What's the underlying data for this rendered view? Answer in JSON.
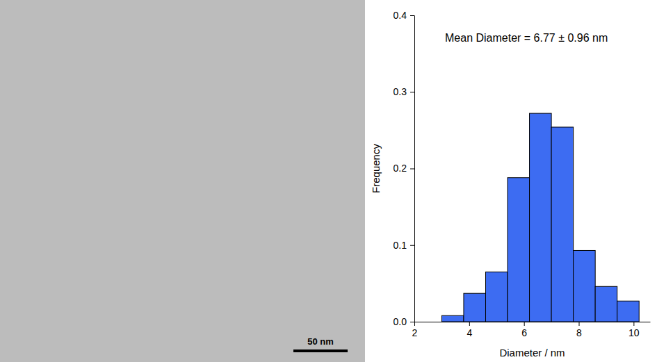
{
  "micrograph": {
    "scale_bar_label": "50 nm"
  },
  "chart_data": {
    "type": "histogram",
    "annotation": "Mean Diameter = 6.77 ± 0.96 nm",
    "x_label": "Diameter / nm",
    "y_label": "Frequency",
    "bins": [
      3.0,
      3.8,
      4.6,
      5.4,
      6.2,
      7.0,
      7.8,
      8.6,
      9.4,
      10.2
    ],
    "values": [
      0.008,
      0.037,
      0.065,
      0.188,
      0.272,
      0.254,
      0.093,
      0.046,
      0.027
    ],
    "color": "#3d6cf2",
    "xlim": [
      2,
      10.6
    ],
    "ylim": [
      0,
      0.4
    ],
    "xticks": [
      2,
      4,
      6,
      8,
      10
    ],
    "yticks": [
      {
        "value": 0,
        "label": "0.0"
      },
      {
        "value": 0.1,
        "label": "0.1"
      },
      {
        "value": 0.2,
        "label": "0.2"
      },
      {
        "value": 0.3,
        "label": "0.3"
      },
      {
        "value": 0.4,
        "label": "0.4"
      }
    ]
  }
}
